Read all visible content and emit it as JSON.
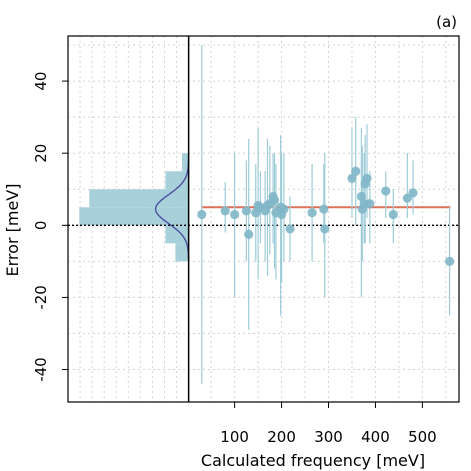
{
  "panel_label": "(a)",
  "chart_data": {
    "type": "scatter",
    "xlabel": "Calculated frequency [meV]",
    "ylabel": "Error [meV]",
    "xlim": [
      -255,
      578
    ],
    "ylim": [
      -49,
      52.5
    ],
    "xticks": [
      100,
      200,
      300,
      400,
      500
    ],
    "yticks": [
      -40,
      -20,
      0,
      20,
      40
    ],
    "grid": true,
    "mean_line": {
      "x_start": 30,
      "x_end": 560,
      "y": 5,
      "color": "#E0705A"
    },
    "zero_line": {
      "y": 0,
      "style": "dotted"
    },
    "marker_color": "#7FB6C8",
    "errorbar_color": "#9ECCD8",
    "points": [
      {
        "x": 30,
        "y": 3,
        "lo": -44,
        "hi": 50
      },
      {
        "x": 80,
        "y": 4,
        "lo": -2,
        "hi": 12
      },
      {
        "x": 100,
        "y": 3,
        "lo": -20,
        "hi": 20
      },
      {
        "x": 125,
        "y": 4,
        "lo": -10,
        "hi": 18
      },
      {
        "x": 130,
        "y": -2.5,
        "lo": -29,
        "hi": 24
      },
      {
        "x": 145,
        "y": 3.5,
        "lo": -10,
        "hi": 17
      },
      {
        "x": 150,
        "y": 5.5,
        "lo": -15,
        "hi": 27
      },
      {
        "x": 155,
        "y": 5,
        "lo": -5,
        "hi": 15
      },
      {
        "x": 165,
        "y": 4,
        "lo": -10,
        "hi": 15
      },
      {
        "x": 170,
        "y": 5.5,
        "lo": -14,
        "hi": 24
      },
      {
        "x": 175,
        "y": 6,
        "lo": -8,
        "hi": 22
      },
      {
        "x": 182,
        "y": 8,
        "lo": -5,
        "hi": 20
      },
      {
        "x": 185,
        "y": 7,
        "lo": -12,
        "hi": 20
      },
      {
        "x": 188,
        "y": 3.5,
        "lo": -15,
        "hi": 17
      },
      {
        "x": 198,
        "y": 5,
        "lo": -25,
        "hi": 25
      },
      {
        "x": 200,
        "y": 3,
        "lo": -16,
        "hi": 20
      },
      {
        "x": 205,
        "y": 4.5,
        "lo": -10,
        "hi": 20
      },
      {
        "x": 218,
        "y": -1,
        "lo": -10,
        "hi": 8
      },
      {
        "x": 265,
        "y": 3.5,
        "lo": -10,
        "hi": 17
      },
      {
        "x": 290,
        "y": 4.5,
        "lo": -5,
        "hi": 17
      },
      {
        "x": 292,
        "y": -1,
        "lo": -20,
        "hi": 20
      },
      {
        "x": 350,
        "y": 13,
        "lo": 2,
        "hi": 27
      },
      {
        "x": 358,
        "y": 15,
        "lo": 0,
        "hi": 30
      },
      {
        "x": 370,
        "y": 8,
        "lo": -20,
        "hi": 27
      },
      {
        "x": 372,
        "y": 4.5,
        "lo": -10,
        "hi": 22
      },
      {
        "x": 376,
        "y": 6,
        "lo": -5,
        "hi": 20
      },
      {
        "x": 378,
        "y": 11.5,
        "lo": -5,
        "hi": 25
      },
      {
        "x": 382,
        "y": 13,
        "lo": 2,
        "hi": 28
      },
      {
        "x": 388,
        "y": 6,
        "lo": -5,
        "hi": 15
      },
      {
        "x": 422,
        "y": 9.5,
        "lo": 2,
        "hi": 15
      },
      {
        "x": 438,
        "y": 3,
        "lo": -5,
        "hi": 10
      },
      {
        "x": 468,
        "y": 7.5,
        "lo": 2,
        "hi": 20
      },
      {
        "x": 480,
        "y": 9,
        "lo": 3,
        "hi": 18
      },
      {
        "x": 558,
        "y": -10,
        "lo": -25,
        "hi": 5
      }
    ],
    "histogram": {
      "x_range": [
        -255,
        2
      ],
      "bins": [
        {
          "y0": -10,
          "y1": -5,
          "density": 0.04
        },
        {
          "y0": -5,
          "y1": 0,
          "density": 0.07
        },
        {
          "y0": 0,
          "y1": 5,
          "density": 0.33
        },
        {
          "y0": 5,
          "y1": 10,
          "density": 0.3
        },
        {
          "y0": 10,
          "y1": 15,
          "density": 0.07
        },
        {
          "y0": 15,
          "y1": 20,
          "density": 0.02
        }
      ],
      "density_max": 0.335,
      "fill_color": "#A8D0DA",
      "normal_curve": {
        "mean": 4.5,
        "sd": 4,
        "color": "#4B4FA0"
      }
    }
  }
}
